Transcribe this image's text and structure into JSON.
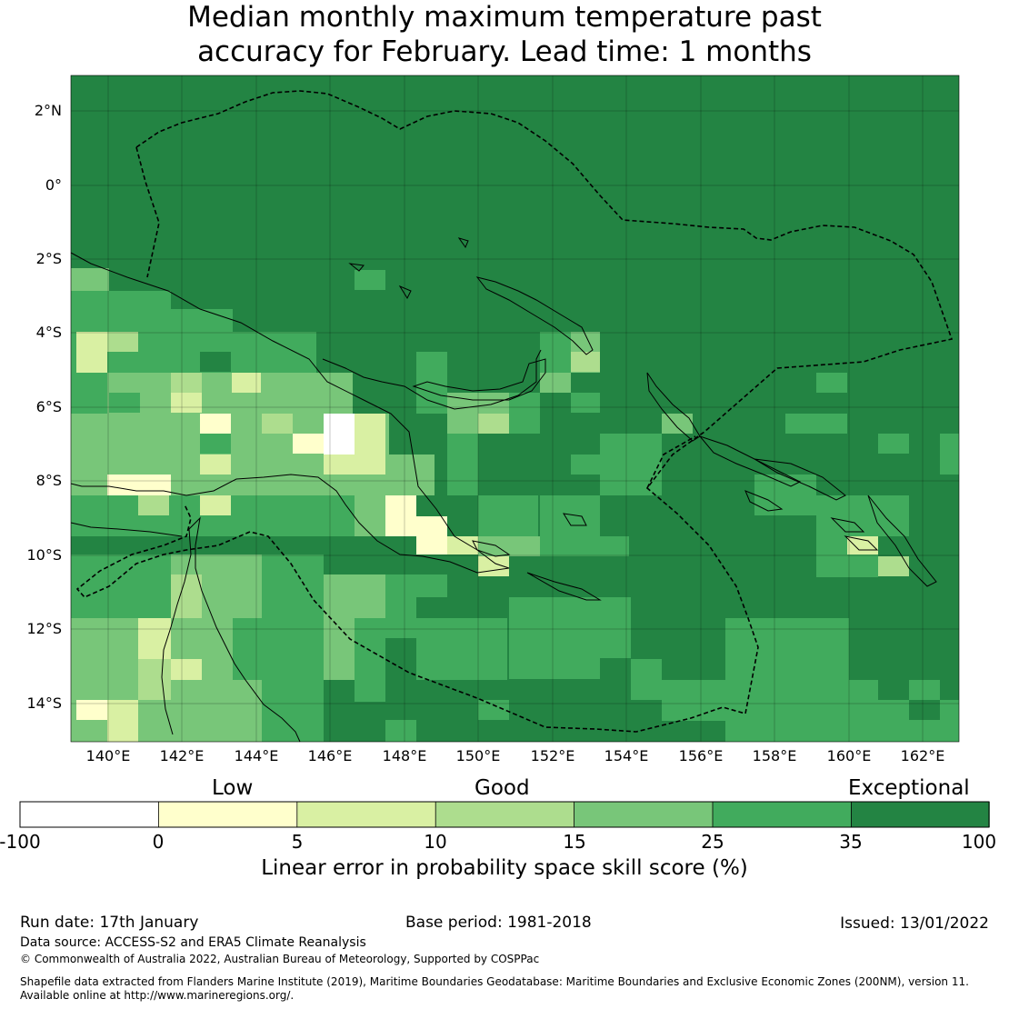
{
  "title_line1": "Median monthly maximum temperature past",
  "title_line2": "accuracy for February. Lead time: 1 months",
  "map": {
    "lon_range": [
      139,
      163
    ],
    "lat_range": [
      -15,
      3
    ],
    "lat_labels": [
      "2°N",
      "0°",
      "2°S",
      "4°S",
      "6°S",
      "8°S",
      "10°S",
      "12°S",
      "14°S"
    ],
    "lon_labels": [
      "140°E",
      "142°E",
      "144°E",
      "146°E",
      "148°E",
      "150°E",
      "152°E",
      "154°E",
      "156°E",
      "158°E",
      "160°E",
      "162°E"
    ]
  },
  "colorbar": {
    "category_labels": [
      "Low",
      "Good",
      "Exceptional"
    ],
    "tick_labels": [
      "-100",
      "0",
      "5",
      "10",
      "15",
      "25",
      "35",
      "100"
    ],
    "colors": [
      "#ffffff",
      "#ffffcc",
      "#d9f0a3",
      "#addd8e",
      "#78c679",
      "#41ab5d",
      "#238443"
    ],
    "axis_label": "Linear error in probability space skill score (%)"
  },
  "footer": {
    "run_date": "Run date: 17th January",
    "base_period": "Base period: 1981-2018",
    "issued": "Issued: 13/01/2022",
    "data_source": "Data source: ACCESS-S2 and ERA5 Climate Reanalysis",
    "copyright": "© Commonwealth of Australia 2022, Australian Bureau of Meteorology, Supported by COSPPac",
    "shapefile_line1": "Shapefile data extracted from Flanders Marine Institute (2019), Maritime Boundaries Geodatabase: Maritime Boundaries and Exclusive Economic Zones (200NM), version 11.",
    "shapefile_line2": "Available online at http://www.marineregions.org/."
  }
}
